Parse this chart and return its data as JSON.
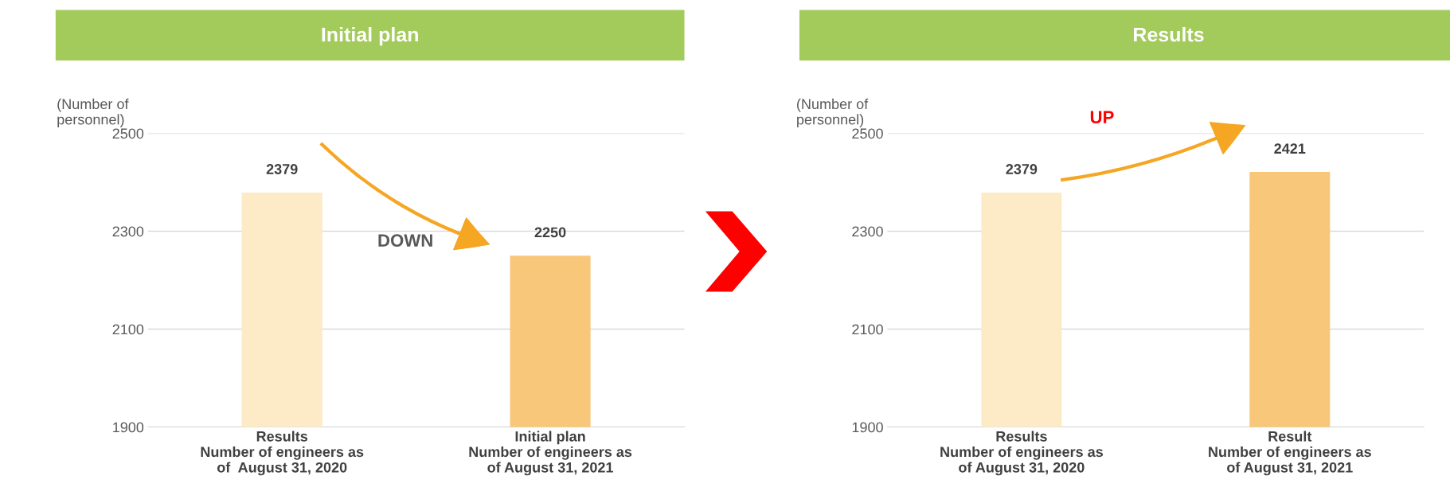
{
  "chart_data": [
    {
      "type": "bar",
      "title": "Initial plan",
      "ylabel": "(Number of\npersonnel)",
      "categories": [
        "Results\nNumber of engineers as\nof  August 31, 2020",
        "Initial plan\nNumber of engineers as\nof August 31, 2021"
      ],
      "values": [
        2379,
        2250
      ],
      "colors": [
        "#fdebc8",
        "#f9c77a"
      ],
      "ylim": [
        1900,
        2500
      ],
      "yticks": [
        1900,
        2100,
        2300,
        2500
      ],
      "grid": "y",
      "data_labels": true,
      "annotations": [
        "DOWN"
      ]
    },
    {
      "type": "bar",
      "title": "Results",
      "ylabel": "(Number of\npersonnel)",
      "categories": [
        "Results\nNumber of engineers as\nof August 31, 2020",
        "Result\nNumber of engineers as\nof August 31, 2021"
      ],
      "values": [
        2379,
        2421
      ],
      "colors": [
        "#fdebc8",
        "#f9c77a"
      ],
      "ylim": [
        1900,
        2500
      ],
      "yticks": [
        1900,
        2100,
        2300,
        2500
      ],
      "grid": "y",
      "data_labels": true,
      "annotations": [
        "UP"
      ]
    }
  ]
}
